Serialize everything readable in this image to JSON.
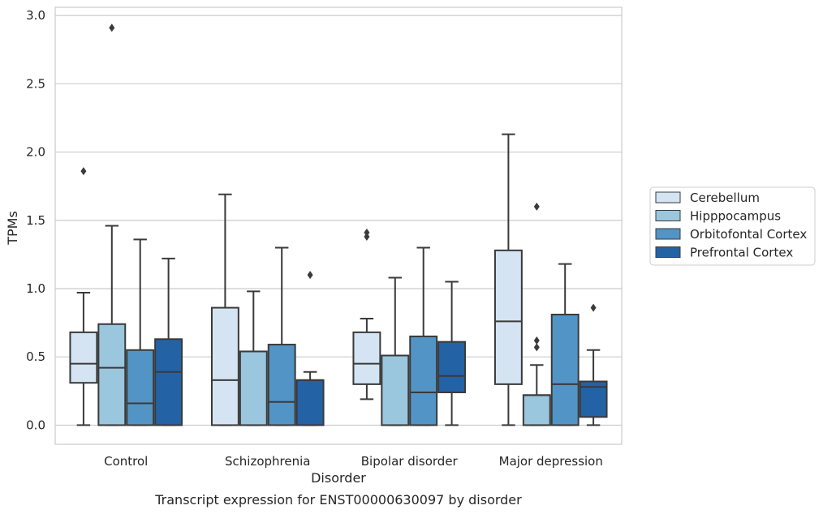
{
  "chart_data": {
    "type": "box",
    "xlabel": "Disorder",
    "ylabel": "TPMs",
    "caption": "Transcript expression for ENST00000630097 by disorder",
    "ylim": [
      -0.14,
      3.06
    ],
    "yticks": [
      "0.0",
      "0.5",
      "1.0",
      "1.5",
      "2.0",
      "2.5",
      "3.0"
    ],
    "grid": "horizontal",
    "legend_position": "right",
    "categories": [
      "Control",
      "Schizophrenia",
      "Bipolar disorder",
      "Major depression"
    ],
    "series": [
      {
        "name": "Cerebellum",
        "color": "#d4e4f2",
        "boxes": [
          {
            "q1": 0.31,
            "median": 0.45,
            "q3": 0.68,
            "whislo": 0.0,
            "whishi": 0.97,
            "fliers": [
              1.86
            ]
          },
          {
            "q1": 0.0,
            "median": 0.33,
            "q3": 0.86,
            "whislo": 0.0,
            "whishi": 1.69,
            "fliers": []
          },
          {
            "q1": 0.3,
            "median": 0.45,
            "q3": 0.68,
            "whislo": 0.19,
            "whishi": 0.78,
            "fliers": [
              1.38,
              1.41
            ]
          },
          {
            "q1": 0.3,
            "median": 0.76,
            "q3": 1.28,
            "whislo": 0.0,
            "whishi": 2.13,
            "fliers": []
          }
        ]
      },
      {
        "name": "Hipppocampus",
        "color": "#9ac6de",
        "boxes": [
          {
            "q1": 0.0,
            "median": 0.42,
            "q3": 0.74,
            "whislo": 0.0,
            "whishi": 1.46,
            "fliers": [
              2.91
            ]
          },
          {
            "q1": 0.0,
            "median": 0.54,
            "q3": 0.54,
            "whislo": 0.0,
            "whishi": 0.98,
            "fliers": []
          },
          {
            "q1": 0.0,
            "median": 0.51,
            "q3": 0.51,
            "whislo": 0.0,
            "whishi": 1.08,
            "fliers": []
          },
          {
            "q1": 0.0,
            "median": 0.22,
            "q3": 0.22,
            "whislo": 0.0,
            "whishi": 0.44,
            "fliers": [
              0.57,
              0.62,
              1.6
            ]
          }
        ]
      },
      {
        "name": "Orbitofontal Cortex",
        "color": "#5294c5",
        "boxes": [
          {
            "q1": 0.0,
            "median": 0.16,
            "q3": 0.55,
            "whislo": 0.0,
            "whishi": 1.36,
            "fliers": []
          },
          {
            "q1": 0.0,
            "median": 0.17,
            "q3": 0.59,
            "whislo": 0.0,
            "whishi": 1.3,
            "fliers": []
          },
          {
            "q1": 0.0,
            "median": 0.24,
            "q3": 0.65,
            "whislo": 0.0,
            "whishi": 1.3,
            "fliers": []
          },
          {
            "q1": 0.0,
            "median": 0.3,
            "q3": 0.81,
            "whislo": 0.0,
            "whishi": 1.18,
            "fliers": []
          }
        ]
      },
      {
        "name": "Prefrontal Cortex",
        "color": "#2462a6",
        "boxes": [
          {
            "q1": 0.0,
            "median": 0.39,
            "q3": 0.63,
            "whislo": 0.0,
            "whishi": 1.22,
            "fliers": []
          },
          {
            "q1": 0.0,
            "median": 0.33,
            "q3": 0.33,
            "whislo": 0.0,
            "whishi": 0.39,
            "fliers": [
              1.1
            ]
          },
          {
            "q1": 0.24,
            "median": 0.36,
            "q3": 0.61,
            "whislo": 0.0,
            "whishi": 1.05,
            "fliers": []
          },
          {
            "q1": 0.06,
            "median": 0.28,
            "q3": 0.32,
            "whislo": 0.0,
            "whishi": 0.55,
            "fliers": [
              0.86
            ]
          }
        ]
      }
    ]
  }
}
